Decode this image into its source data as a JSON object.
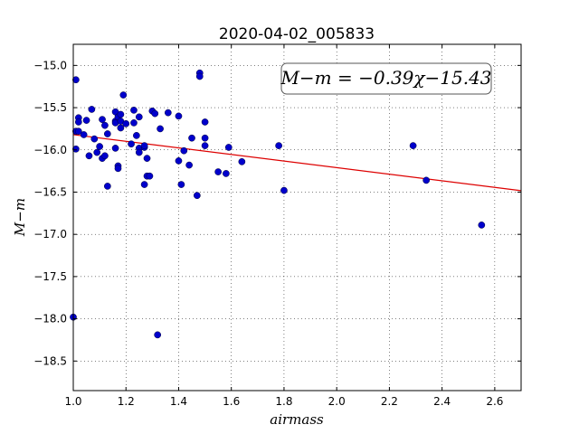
{
  "chart_data": {
    "type": "scatter",
    "title": "2020-04-02_005833",
    "xlabel": "airmass",
    "ylabel": "M−m",
    "xlim": [
      1.0,
      2.7
    ],
    "ylim": [
      -18.85,
      -14.75
    ],
    "xticks": [
      1.0,
      1.2,
      1.4,
      1.6,
      1.8,
      2.0,
      2.2,
      2.4,
      2.6
    ],
    "xtick_labels": [
      "1.0",
      "1.2",
      "1.4",
      "1.6",
      "1.8",
      "2.0",
      "2.2",
      "2.4",
      "2.6"
    ],
    "yticks": [
      -15.0,
      -15.5,
      -16.0,
      -16.5,
      -17.0,
      -17.5,
      -18.0,
      -18.5
    ],
    "ytick_labels": [
      "−15.0",
      "−15.5",
      "−16.0",
      "−16.5",
      "−17.0",
      "−17.5",
      "−18.0",
      "−18.5"
    ],
    "grid": true,
    "annotation": "M−m = −0.39χ−15.43",
    "fit": {
      "slope": -0.39,
      "intercept": -15.43,
      "color": "#dd0000"
    },
    "marker_color": "#0000cc",
    "points": [
      [
        1.01,
        -15.17
      ],
      [
        1.0,
        -17.98
      ],
      [
        1.02,
        -15.62
      ],
      [
        1.02,
        -15.67
      ],
      [
        1.01,
        -15.78
      ],
      [
        1.02,
        -15.78
      ],
      [
        1.01,
        -15.99
      ],
      [
        1.04,
        -15.82
      ],
      [
        1.05,
        -15.65
      ],
      [
        1.06,
        -16.07
      ],
      [
        1.07,
        -15.52
      ],
      [
        1.08,
        -15.87
      ],
      [
        1.09,
        -16.03
      ],
      [
        1.1,
        -15.96
      ],
      [
        1.11,
        -15.64
      ],
      [
        1.11,
        -16.1
      ],
      [
        1.12,
        -16.07
      ],
      [
        1.12,
        -15.71
      ],
      [
        1.13,
        -15.81
      ],
      [
        1.13,
        -16.43
      ],
      [
        1.16,
        -15.55
      ],
      [
        1.16,
        -15.66
      ],
      [
        1.16,
        -15.68
      ],
      [
        1.16,
        -15.98
      ],
      [
        1.17,
        -16.19
      ],
      [
        1.17,
        -16.22
      ],
      [
        1.17,
        -15.61
      ],
      [
        1.18,
        -15.58
      ],
      [
        1.18,
        -15.66
      ],
      [
        1.18,
        -15.74
      ],
      [
        1.19,
        -15.35
      ],
      [
        1.2,
        -15.69
      ],
      [
        1.22,
        -15.93
      ],
      [
        1.23,
        -15.53
      ],
      [
        1.23,
        -15.68
      ],
      [
        1.24,
        -15.83
      ],
      [
        1.25,
        -15.98
      ],
      [
        1.25,
        -16.03
      ],
      [
        1.25,
        -15.61
      ],
      [
        1.27,
        -15.97
      ],
      [
        1.27,
        -15.95
      ],
      [
        1.27,
        -16.41
      ],
      [
        1.28,
        -16.31
      ],
      [
        1.29,
        -16.31
      ],
      [
        1.28,
        -16.1
      ],
      [
        1.3,
        -15.54
      ],
      [
        1.31,
        -15.57
      ],
      [
        1.32,
        -18.19
      ],
      [
        1.33,
        -15.75
      ],
      [
        1.36,
        -15.56
      ],
      [
        1.4,
        -15.6
      ],
      [
        1.4,
        -16.13
      ],
      [
        1.41,
        -16.41
      ],
      [
        1.42,
        -16.01
      ],
      [
        1.44,
        -16.18
      ],
      [
        1.45,
        -15.86
      ],
      [
        1.47,
        -16.54
      ],
      [
        1.48,
        -15.09
      ],
      [
        1.48,
        -15.13
      ],
      [
        1.5,
        -15.86
      ],
      [
        1.5,
        -15.95
      ],
      [
        1.5,
        -15.67
      ],
      [
        1.55,
        -16.26
      ],
      [
        1.58,
        -16.28
      ],
      [
        1.59,
        -15.97
      ],
      [
        1.64,
        -16.14
      ],
      [
        1.78,
        -15.95
      ],
      [
        1.8,
        -16.48
      ],
      [
        2.29,
        -15.95
      ],
      [
        2.34,
        -16.36
      ],
      [
        2.55,
        -16.89
      ]
    ]
  }
}
